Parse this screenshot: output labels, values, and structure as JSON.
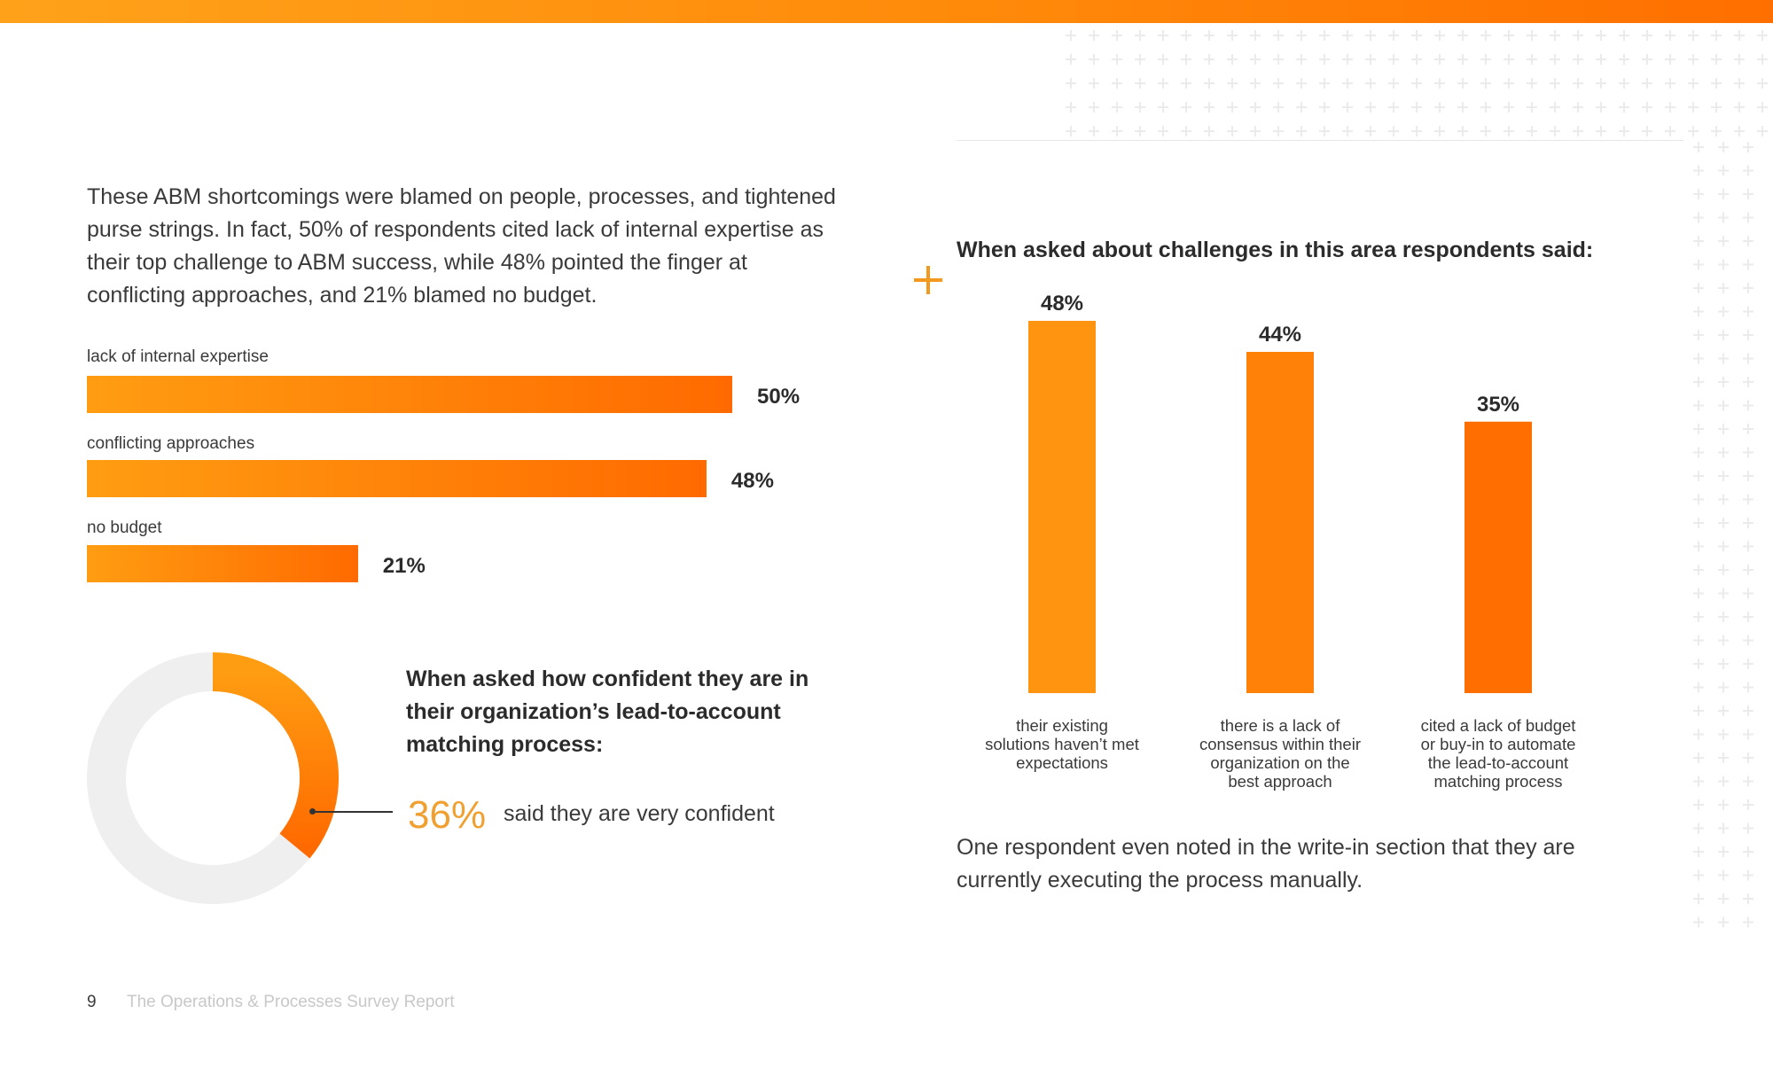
{
  "intro_text": "These ABM shortcomings were blamed on people, processes, and tightened purse strings. In fact, 50% of respondents cited lack of internal expertise as their top challenge to ABM success, while 48% pointed the finger at conflicting approaches, and 21% blamed no budget.",
  "colors": {
    "accent_light": "#ff9d12",
    "accent_dark": "#ff6a00",
    "donut_track": "#efefef",
    "pct_text": "#f0a030"
  },
  "confidence": {
    "question": "When asked how confident they are in their organization’s lead-to-account matching process:",
    "value_label": "36%",
    "value": 36,
    "description": "said they are very confident"
  },
  "challenges": {
    "title": "When asked about challenges in this area respondents said:",
    "footnote": "One respondent even noted in the write-in section that they are currently executing the process manually."
  },
  "footer": {
    "page_number": "9",
    "report_title": "The Operations & Processes Survey Report"
  },
  "chart_data": [
    {
      "type": "bar",
      "orientation": "horizontal",
      "categories": [
        "lack of internal expertise",
        "conflicting approaches",
        "no budget"
      ],
      "values": [
        50,
        48,
        21
      ],
      "value_labels": [
        "50%",
        "48%",
        "21%"
      ],
      "xlim": [
        0,
        50
      ]
    },
    {
      "type": "pie",
      "variant": "donut",
      "categories": [
        "very confident",
        "other"
      ],
      "values": [
        36,
        64
      ],
      "value_labels": [
        "36%",
        ""
      ]
    },
    {
      "type": "bar",
      "orientation": "vertical",
      "categories": [
        [
          "their existing",
          "solutions haven’t met",
          "expectations"
        ],
        [
          "there is a lack of",
          "consensus within their",
          "organization on the",
          "best approach"
        ],
        [
          "cited a lack of budget",
          "or buy-in to automate",
          "the lead-to-account",
          "matching process"
        ]
      ],
      "values": [
        48,
        44,
        35
      ],
      "value_labels": [
        "48%",
        "44%",
        "35%"
      ],
      "ylim": [
        0,
        48
      ]
    }
  ]
}
